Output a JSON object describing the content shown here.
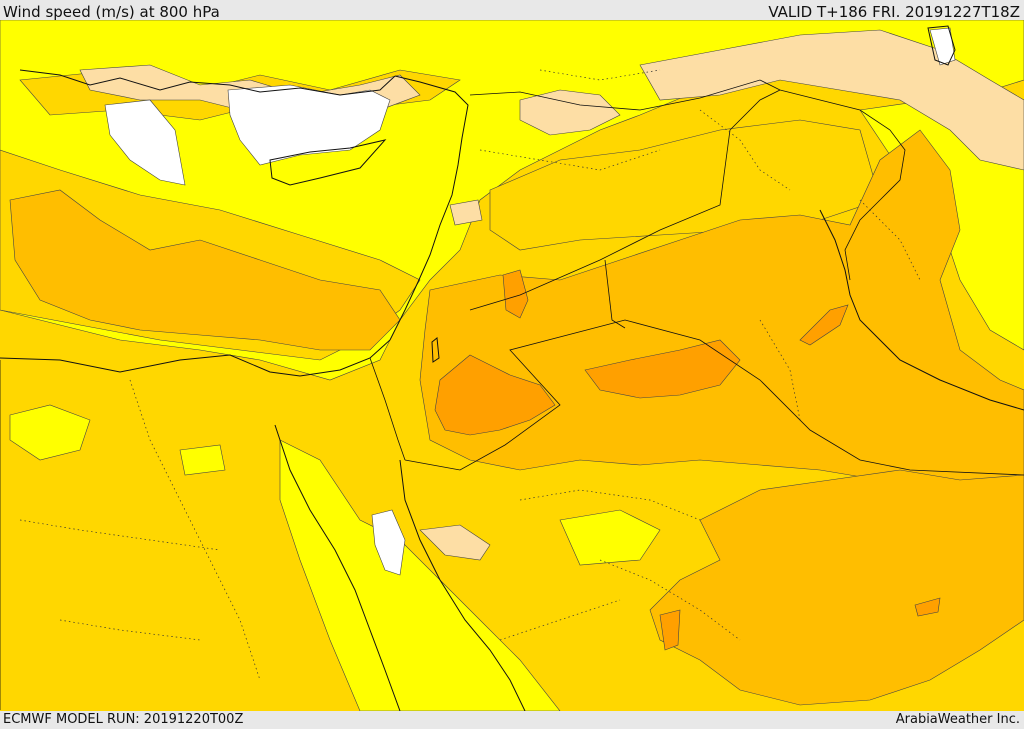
{
  "header": {
    "title": "Wind speed (m/s) at 800 hPa",
    "valid": "VALID T+186 FRI. 20191227T18Z"
  },
  "footer": {
    "model_run": "ECMWF MODEL RUN: 20191220T00Z",
    "credit": "ArabiaWeather Inc."
  },
  "map_colors": {
    "white": "#ffffff",
    "cream": "#fddea5",
    "yellow": "#ffff00",
    "gold": "#ffd700",
    "amber": "#ffbe00",
    "orange": "#ffa000",
    "line": "#222222"
  }
}
